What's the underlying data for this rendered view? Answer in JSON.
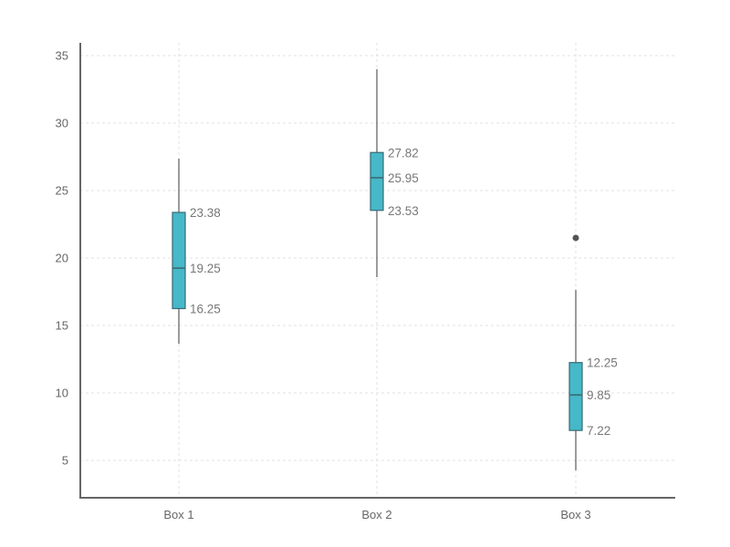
{
  "chart_data": {
    "type": "box",
    "title": "",
    "xlabel": "",
    "ylabel": "",
    "ylim": [
      2.2,
      35.9
    ],
    "yticks": [
      5,
      10,
      15,
      20,
      25,
      30,
      35
    ],
    "grid": true,
    "legend": null,
    "categories": [
      "Box 1",
      "Box 2",
      "Box 3"
    ],
    "series": [
      {
        "name": "Box 1",
        "whisker_low": 13.65,
        "q1": 16.25,
        "median": 19.25,
        "q3": 23.38,
        "whisker_high": 27.36,
        "outliers": []
      },
      {
        "name": "Box 2",
        "whisker_low": 18.58,
        "q1": 23.53,
        "median": 25.95,
        "q3": 27.82,
        "whisker_high": 33.99,
        "outliers": []
      },
      {
        "name": "Box 3",
        "whisker_low": 4.26,
        "q1": 7.22,
        "median": 9.85,
        "q3": 12.25,
        "whisker_high": 17.64,
        "outliers": [
          21.49
        ]
      }
    ],
    "annotations": [
      {
        "box": "Box 1",
        "labels": [
          "23.38",
          "19.25",
          "16.25"
        ]
      },
      {
        "box": "Box 2",
        "labels": [
          "27.82",
          "25.95",
          "23.53"
        ]
      },
      {
        "box": "Box 3",
        "labels": [
          "12.25",
          "9.85",
          "7.22"
        ]
      }
    ]
  },
  "style": {
    "box_fill": "#46b8c8",
    "box_stroke": "#3a6a74",
    "whisker": "#666666",
    "axis": "#666666",
    "grid": "#e2e2e2",
    "outlier": "#555555"
  }
}
